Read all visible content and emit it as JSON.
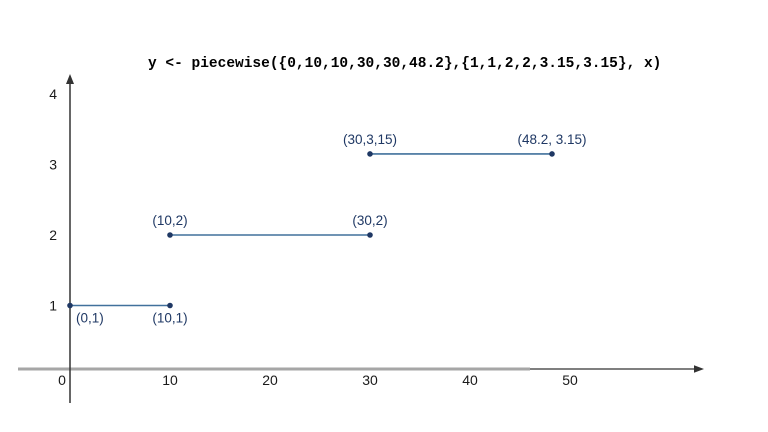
{
  "chart_data": {
    "type": "line",
    "title": "y <- piecewise({0,10,10,30,30,48.2},{1,1,2,2,3.15,3.15}, x)",
    "xlabel": "",
    "ylabel": "",
    "xlim": [
      0,
      63
    ],
    "ylim": [
      0,
      4.4
    ],
    "grid": false,
    "legend": "none",
    "x_ticks": [
      {
        "label": "0",
        "value": 0,
        "dx": -8
      },
      {
        "label": "10",
        "value": 10,
        "dx": 0
      },
      {
        "label": "20",
        "value": 20,
        "dx": 0
      },
      {
        "label": "30",
        "value": 30,
        "dx": 0
      },
      {
        "label": "40",
        "value": 40,
        "dx": 0
      },
      {
        "label": "50",
        "value": 50,
        "dx": 0
      }
    ],
    "y_ticks": [
      {
        "label": "1",
        "value": 1
      },
      {
        "label": "2",
        "value": 2
      },
      {
        "label": "3",
        "value": 3
      },
      {
        "label": "4",
        "value": 4
      }
    ],
    "segments": [
      {
        "points": [
          {
            "x": 0,
            "y": 1,
            "label": "(0,1)",
            "label_pos": "below-right"
          },
          {
            "x": 10,
            "y": 1,
            "label": "(10,1)",
            "label_pos": "below"
          }
        ]
      },
      {
        "points": [
          {
            "x": 10,
            "y": 2,
            "label": "(10,2)",
            "label_pos": "above"
          },
          {
            "x": 30,
            "y": 2,
            "label": "(30,2)",
            "label_pos": "above"
          }
        ]
      },
      {
        "points": [
          {
            "x": 30,
            "y": 3.15,
            "label": "(30,3,15)",
            "label_pos": "above"
          },
          {
            "x": 48.2,
            "y": 3.15,
            "label": "(48.2, 3.15)",
            "label_pos": "above"
          }
        ]
      }
    ],
    "colors": {
      "segment_line": "#41719C",
      "point": "#1F3864",
      "point_label": "#1F3864",
      "axis_gray": "#A6A6A6",
      "axis_dark": "#333333",
      "tick_label": "#1a1a1a",
      "background": "#ffffff"
    }
  }
}
